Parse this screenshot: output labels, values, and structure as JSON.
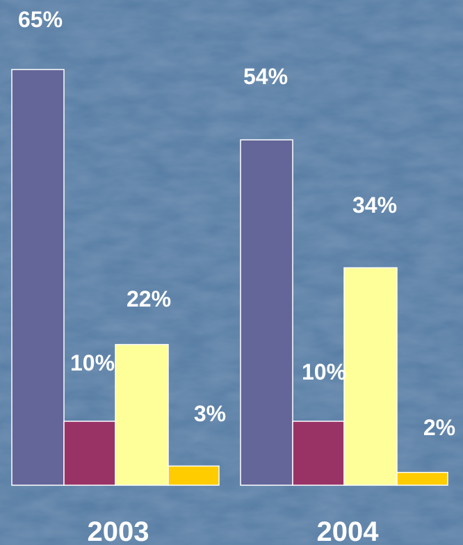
{
  "chart_data": {
    "type": "bar",
    "categories": [
      "2003",
      "2004"
    ],
    "series": [
      {
        "values": [
          65,
          54
        ],
        "color": "#646699"
      },
      {
        "values": [
          10,
          10
        ],
        "color": "#993366"
      },
      {
        "values": [
          22,
          34
        ],
        "color": "#ffff99"
      },
      {
        "values": [
          3,
          2
        ],
        "color": "#ffcc00"
      }
    ],
    "data_labels": [
      [
        "65%",
        "10%",
        "22%",
        "3%"
      ],
      [
        "54%",
        "10%",
        "34%",
        "2%"
      ]
    ],
    "ylim": [
      0,
      65
    ],
    "grid": false,
    "legend": "none"
  }
}
